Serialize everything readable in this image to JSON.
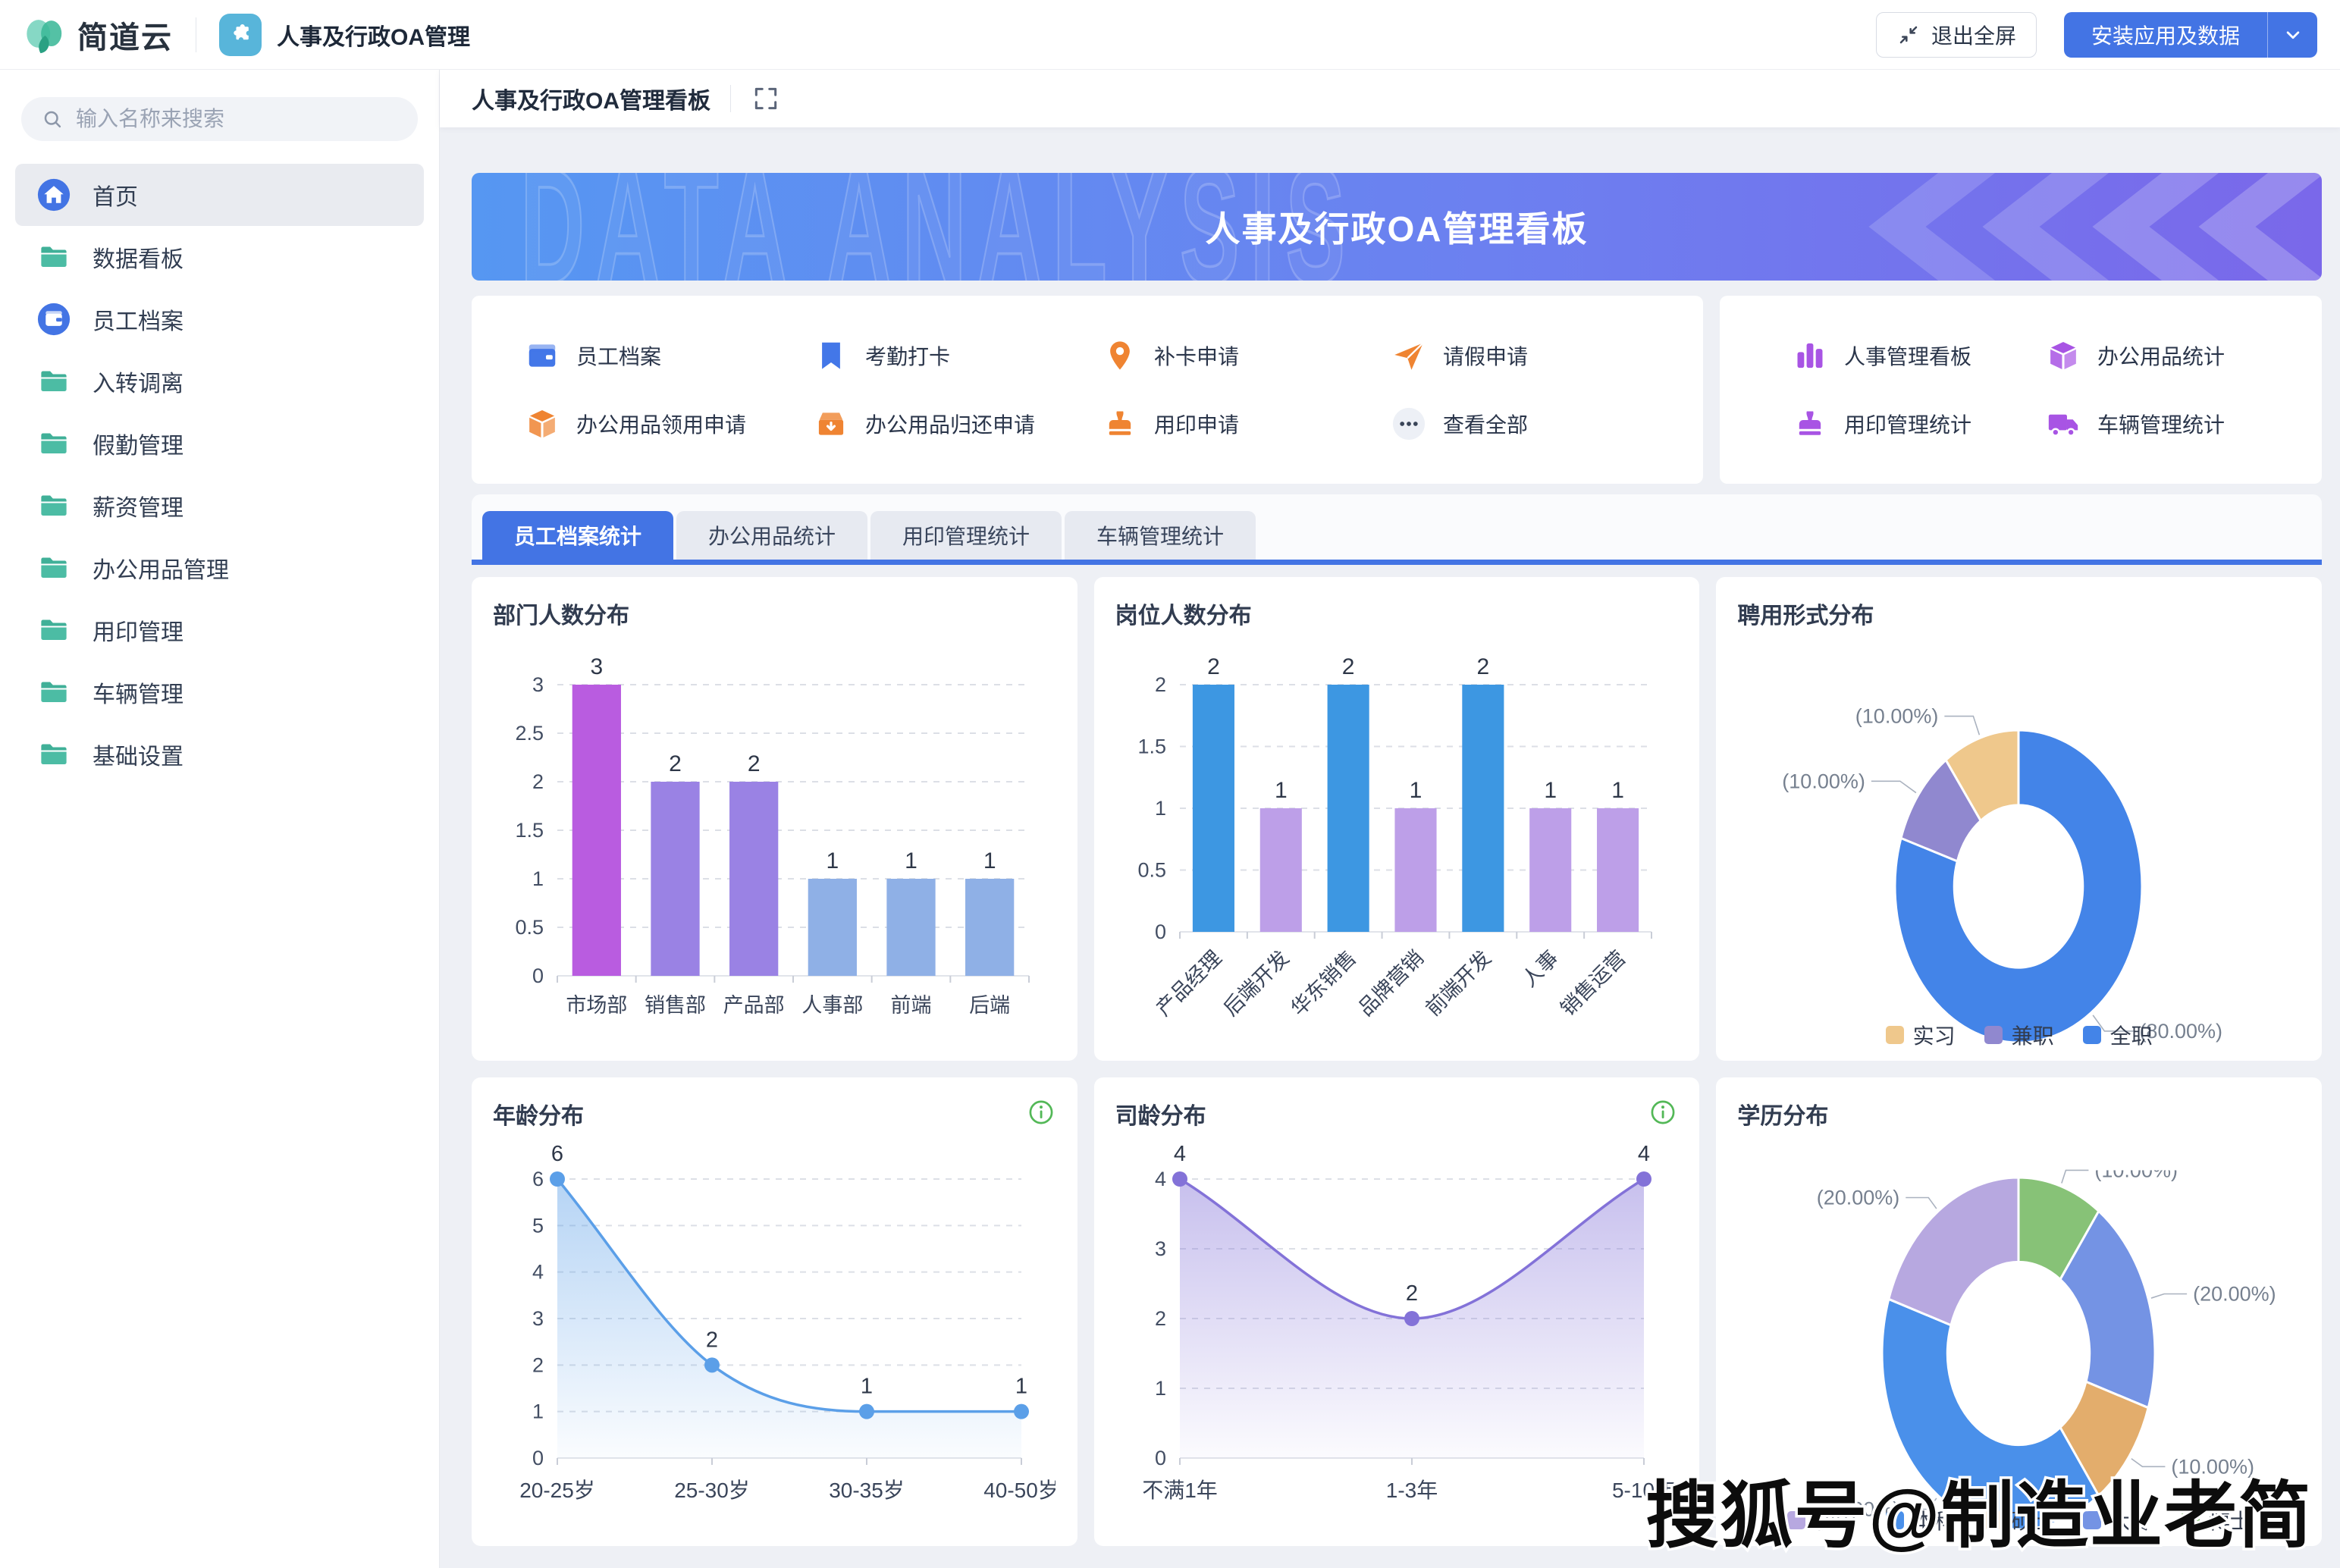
{
  "navbar": {
    "brand": "简道云",
    "app_name": "人事及行政OA管理",
    "exit_fullscreen_label": "退出全屏",
    "install_button_label": "安装应用及数据"
  },
  "sidebar": {
    "search_placeholder": "输入名称来搜索",
    "items": [
      {
        "label": "首页",
        "icon": "home",
        "active": true
      },
      {
        "label": "数据看板",
        "icon": "folder",
        "active": false
      },
      {
        "label": "员工档案",
        "icon": "wallet-circle",
        "active": false
      },
      {
        "label": "入转调离",
        "icon": "folder",
        "active": false
      },
      {
        "label": "假勤管理",
        "icon": "folder",
        "active": false
      },
      {
        "label": "薪资管理",
        "icon": "folder",
        "active": false
      },
      {
        "label": "办公用品管理",
        "icon": "folder",
        "active": false
      },
      {
        "label": "用印管理",
        "icon": "folder",
        "active": false
      },
      {
        "label": "车辆管理",
        "icon": "folder",
        "active": false
      },
      {
        "label": "基础设置",
        "icon": "folder",
        "active": false
      }
    ]
  },
  "page": {
    "title": "人事及行政OA管理看板",
    "banner_title": "人事及行政OA管理看板",
    "banner_watermark": "DATA ANALYSIS"
  },
  "quick_links": {
    "items": [
      {
        "label": "员工档案",
        "icon": "wallet-flat",
        "color": "#4377e8"
      },
      {
        "label": "考勤打卡",
        "icon": "bookmark",
        "color": "#4377e8"
      },
      {
        "label": "补卡申请",
        "icon": "pin",
        "color": "#ef8432"
      },
      {
        "label": "请假申请",
        "icon": "send",
        "color": "#ef8432"
      },
      {
        "label": "办公用品领用申请",
        "icon": "box3d",
        "color": "#ef8432"
      },
      {
        "label": "办公用品归还申请",
        "icon": "boxopen",
        "color": "#ef8432"
      },
      {
        "label": "用印申请",
        "icon": "stamp",
        "color": "#ef8432"
      },
      {
        "label": "查看全部",
        "icon": "ellipsis",
        "color": "#3a4558"
      }
    ]
  },
  "stat_links": {
    "items": [
      {
        "label": "人事管理看板",
        "icon": "barchart",
        "color": "#a854e4"
      },
      {
        "label": "办公用品统计",
        "icon": "box3d",
        "color": "#a854e4"
      },
      {
        "label": "用印管理统计",
        "icon": "stamp",
        "color": "#a854e4"
      },
      {
        "label": "车辆管理统计",
        "icon": "truck",
        "color": "#a854e4"
      }
    ]
  },
  "tabs": [
    {
      "label": "员工档案统计",
      "active": true
    },
    {
      "label": "办公用品统计",
      "active": false
    },
    {
      "label": "用印管理统计",
      "active": false
    },
    {
      "label": "车辆管理统计",
      "active": false
    }
  ],
  "watermark": "搜狐号@制造业老简",
  "chart_data": [
    {
      "type": "bar",
      "title": "部门人数分布",
      "categories": [
        "市场部",
        "销售部",
        "产品部",
        "人事部",
        "前端",
        "后端"
      ],
      "values": [
        3,
        2,
        2,
        1,
        1,
        1
      ],
      "bar_colors": [
        "#b95ce0",
        "#9a82e4",
        "#9a82e4",
        "#8fb0e6",
        "#8fb0e6",
        "#8fb0e6"
      ],
      "ylim": [
        0,
        3
      ],
      "ytick_step": 0.5,
      "grid": "dashed",
      "xlabel_rotate": 0
    },
    {
      "type": "bar",
      "title": "岗位人数分布",
      "categories": [
        "产品经理",
        "后端开发",
        "华东销售",
        "品牌营销",
        "前端开发",
        "人事",
        "销售运营"
      ],
      "values": [
        2,
        1,
        2,
        1,
        2,
        1,
        1
      ],
      "bar_colors": [
        "#3d97e2",
        "#bd9fe8",
        "#3d97e2",
        "#bd9fe8",
        "#3d97e2",
        "#bd9fe8",
        "#bd9fe8"
      ],
      "ylim": [
        0,
        2
      ],
      "ytick_step": 0.5,
      "grid": "dashed",
      "xlabel_rotate": 45
    },
    {
      "type": "pie",
      "title": "聘用形式分布",
      "slices": [
        {
          "label": "全职",
          "value": 80,
          "color": "#4384e8"
        },
        {
          "label": "兼职",
          "value": 10,
          "color": "#9088cf"
        },
        {
          "label": "实习",
          "value": 10,
          "color": "#efc88c"
        }
      ],
      "legend_order": [
        "实习",
        "兼职",
        "全职"
      ],
      "label_format": "(percent%)",
      "donut": true,
      "start_angle_deg": 0
    },
    {
      "type": "line",
      "title": "年龄分布",
      "categories": [
        "20-25岁",
        "25-30岁",
        "30-35岁",
        "40-50岁"
      ],
      "values": [
        6,
        2,
        1,
        1
      ],
      "color": "#5b9fe8",
      "ylim": [
        0,
        6
      ],
      "ytick_step": 1,
      "grid": "dashed",
      "area": true,
      "has_info_icon": true
    },
    {
      "type": "line",
      "title": "司龄分布",
      "categories": [
        "不满1年",
        "1-3年",
        "5-10年"
      ],
      "values": [
        4,
        2,
        4
      ],
      "color": "#8372d8",
      "ylim": [
        0,
        4
      ],
      "ytick_step": 1,
      "grid": "dashed",
      "area": true,
      "has_info_icon": true
    },
    {
      "type": "pie",
      "title": "学历分布",
      "slices": [
        {
          "label": "博士",
          "value": 10,
          "color": "#87c277"
        },
        {
          "label": "大专",
          "value": 20,
          "color": "#7493e4"
        },
        {
          "label": "硕士",
          "value": 10,
          "color": "#e3ad6c"
        },
        {
          "label": "本科",
          "value": 40,
          "color": "#4a90ea"
        },
        {
          "label": "初中",
          "value": 20,
          "color": "#b7a8e0"
        }
      ],
      "legend_order": [
        "初中",
        "本科",
        "硕士",
        "大专",
        "博士"
      ],
      "label_format": "(percent%)",
      "donut": true,
      "start_angle_deg": 0,
      "clipped_label": "博士"
    }
  ]
}
